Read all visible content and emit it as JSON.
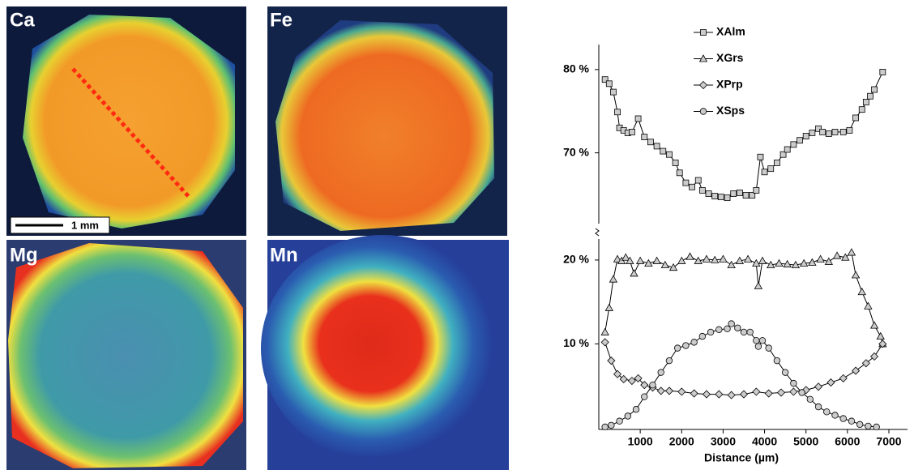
{
  "maps": [
    {
      "label": "Ca"
    },
    {
      "label": "Fe"
    },
    {
      "label": "Mg"
    },
    {
      "label": "Mn"
    }
  ],
  "scale_bar": "1 mm",
  "chart_data": {
    "type": "line",
    "x_label": "Distance (µm)",
    "xlim": [
      0,
      7450
    ],
    "xticks": [
      1000,
      2000,
      3000,
      4000,
      5000,
      6000,
      7000
    ],
    "ylim": [
      0,
      22.5
    ],
    "yticks": [
      {
        "value": 10,
        "label": "10 %"
      },
      {
        "value": 20,
        "label": "20 %"
      }
    ],
    "y2lim": [
      61.5,
      83
    ],
    "y2ticks": [
      {
        "value": 70,
        "label": "70 %"
      },
      {
        "value": 80,
        "label": "80 %"
      }
    ],
    "color": "#cccccc",
    "series": [
      {
        "name": "XAlm",
        "marker": "square",
        "axis": "y2",
        "x": [
          150,
          250,
          350,
          450,
          500,
          600,
          700,
          800,
          950,
          1100,
          1250,
          1400,
          1550,
          1700,
          1850,
          1950,
          2100,
          2250,
          2400,
          2500,
          2650,
          2800,
          2950,
          3100,
          3250,
          3400,
          3550,
          3700,
          3800,
          3900,
          4000,
          4150,
          4300,
          4450,
          4550,
          4700,
          4850,
          5000,
          5150,
          5300,
          5400,
          5550,
          5700,
          5900,
          6050,
          6200,
          6350,
          6450,
          6550,
          6650,
          6850
        ],
        "values": [
          78.8,
          78.3,
          77.3,
          74.9,
          73,
          72.7,
          72.4,
          72.5,
          74.1,
          71.9,
          71.3,
          70.8,
          70.2,
          69.8,
          68.8,
          67.6,
          66.4,
          65.9,
          66.7,
          65.5,
          65.1,
          64.8,
          64.7,
          64.6,
          65.1,
          65.2,
          64.9,
          64.9,
          65.5,
          69.5,
          67.7,
          68.1,
          68.8,
          69.8,
          70.4,
          71,
          71.5,
          72,
          72.4,
          72.9,
          72.5,
          72.3,
          72.5,
          72.5,
          72.7,
          74.2,
          75.2,
          76.1,
          76.8,
          77.6,
          79.7
        ]
      },
      {
        "name": "XGrs",
        "marker": "triangle",
        "x": [
          150,
          250,
          350,
          450,
          550,
          650,
          750,
          850,
          1000,
          1200,
          1400,
          1600,
          1800,
          2000,
          2200,
          2400,
          2600,
          2800,
          3000,
          3200,
          3400,
          3600,
          3800,
          3850,
          3950,
          4150,
          4350,
          4550,
          4750,
          4950,
          5150,
          5350,
          5550,
          5750,
          5950,
          6100,
          6200,
          6350,
          6500,
          6650,
          6800,
          6850
        ],
        "values": [
          11.4,
          14.3,
          17.7,
          20.1,
          19.9,
          20.3,
          19.9,
          18.4,
          19.9,
          19.6,
          19.9,
          19.4,
          19.1,
          19.9,
          20.4,
          19.9,
          20.1,
          20,
          20.1,
          19.4,
          19.9,
          20.1,
          19.6,
          16.9,
          19.9,
          19.4,
          19.6,
          19.5,
          19.4,
          19.6,
          19.7,
          20.1,
          19.8,
          20.5,
          20.3,
          20.9,
          18.2,
          16.2,
          14.5,
          12.2,
          10.9,
          10
        ]
      },
      {
        "name": "XPrp",
        "marker": "diamond",
        "x": [
          150,
          300,
          450,
          600,
          800,
          950,
          1100,
          1300,
          1500,
          1700,
          2000,
          2300,
          2600,
          2900,
          3200,
          3500,
          3800,
          4100,
          4400,
          4700,
          5000,
          5300,
          5600,
          5900,
          6200,
          6450,
          6650,
          6850
        ],
        "values": [
          10.2,
          8,
          6.4,
          5.8,
          5.6,
          5.9,
          5.1,
          4.8,
          4.4,
          4.4,
          4.3,
          4.1,
          4,
          4,
          3.9,
          4,
          4.3,
          4.1,
          4.2,
          4.3,
          4.5,
          4.9,
          5.4,
          5.9,
          6.8,
          7.7,
          8.5,
          10
        ]
      },
      {
        "name": "XSps",
        "marker": "circle",
        "x": [
          150,
          300,
          500,
          700,
          900,
          1100,
          1300,
          1500,
          1700,
          1900,
          2100,
          2300,
          2500,
          2700,
          2900,
          3100,
          3200,
          3350,
          3500,
          3650,
          3800,
          3850,
          3950,
          4100,
          4300,
          4500,
          4700,
          4900,
          5100,
          5300,
          5500,
          5700,
          5900,
          6100,
          6300,
          6500,
          6700
        ],
        "values": [
          0.1,
          0.3,
          0.8,
          1.4,
          2.2,
          3.7,
          5.1,
          6.6,
          8,
          9.5,
          9.8,
          10.2,
          10.9,
          11.4,
          11.7,
          11.8,
          12.4,
          11.9,
          11.4,
          11.4,
          10.4,
          9.7,
          10.4,
          9.5,
          8,
          6.6,
          5.3,
          4.2,
          3.4,
          2.5,
          1.9,
          1.5,
          1.1,
          0.8,
          0.4,
          0.2,
          0.1
        ]
      }
    ]
  }
}
